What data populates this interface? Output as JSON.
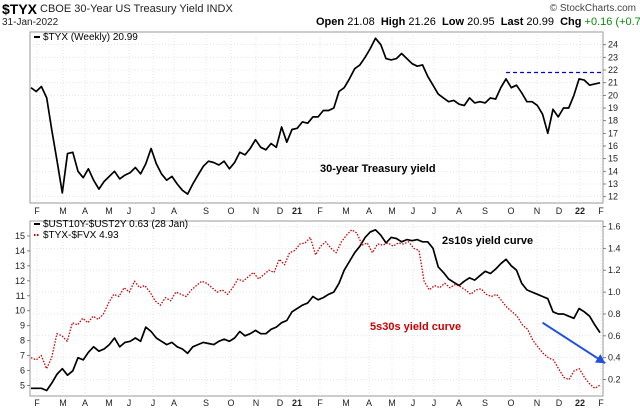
{
  "header": {
    "symbol": "$TYX",
    "description": "CBOE 30-Year US Treasury Yield INDX",
    "date": "31-Jan-2022",
    "brand": "© StockCharts.com",
    "open_label": "Open",
    "open_value": "21.08",
    "high_label": "High",
    "high_value": "21.26",
    "low_label": "Low",
    "low_value": "20.95",
    "last_label": "Last",
    "last_value": "20.99",
    "chg_label": "Chg",
    "chg_value": "+0.16 (+0.77%)",
    "chg_color": "#0a8a0a"
  },
  "chart_data": [
    {
      "type": "line",
      "panel": "top",
      "legend_entries": [
        {
          "label": "$TYX (Weekly) 20.99",
          "color": "#000000"
        }
      ],
      "annotation": "30-year Treasury yield",
      "ylim": [
        11.5,
        25
      ],
      "y_ticks": [
        12,
        13,
        14,
        15,
        16,
        17,
        18,
        19,
        20,
        21,
        22,
        23,
        24
      ],
      "x_month_labels": [
        "F",
        "M",
        "A",
        "M",
        "J",
        "J",
        "A",
        "S",
        "O",
        "N",
        "D",
        "21",
        "F",
        "M",
        "A",
        "M",
        "J",
        "J",
        "A",
        "S",
        "O",
        "N",
        "D",
        "22",
        "F"
      ],
      "reference_line": {
        "y": 21.8,
        "from_week": 91,
        "color": "#0000cc",
        "style": "dashed"
      },
      "series": [
        {
          "color": "#000000",
          "values": [
            20.6,
            20.3,
            20.7,
            19.8,
            17.2,
            14.8,
            12.3,
            15.4,
            15.5,
            14.0,
            13.5,
            14.2,
            13.3,
            12.6,
            13.2,
            13.6,
            14.0,
            13.4,
            13.7,
            13.9,
            14.3,
            13.8,
            14.6,
            15.8,
            14.6,
            13.8,
            13.3,
            13.6,
            13.0,
            12.5,
            12.2,
            13.0,
            13.7,
            14.4,
            14.8,
            14.7,
            14.5,
            14.8,
            14.2,
            14.7,
            15.5,
            15.3,
            15.8,
            16.5,
            15.9,
            15.7,
            16.2,
            15.9,
            17.5,
            16.3,
            17.3,
            17.4,
            17.9,
            17.8,
            18.3,
            18.3,
            18.8,
            18.8,
            19.0,
            20.3,
            20.6,
            21.3,
            22.1,
            22.4,
            23.0,
            23.7,
            24.5,
            24.0,
            22.9,
            22.8,
            22.9,
            23.3,
            22.9,
            22.5,
            22.3,
            22.4,
            21.5,
            20.8,
            20.1,
            19.8,
            19.5,
            19.6,
            19.3,
            19.2,
            19.8,
            19.4,
            19.5,
            19.4,
            19.8,
            19.7,
            20.6,
            21.3,
            20.6,
            20.8,
            20.2,
            19.5,
            19.5,
            19.2,
            18.5,
            17.0,
            18.9,
            18.3,
            19.0,
            19.0,
            20.0,
            21.3,
            21.2,
            20.8,
            20.9,
            20.99
          ]
        }
      ]
    },
    {
      "type": "line",
      "panel": "bottom",
      "legend_entries": [
        {
          "label": "$UST10Y-$UST2Y 0.63 (28 Jan)",
          "color": "#000000"
        },
        {
          "label": "$TYX-$FVX 4.93",
          "color": "#cc0000"
        }
      ],
      "annotations": [
        {
          "text": "2s10s yield curve",
          "color": "#000000"
        },
        {
          "text": "5s30s yield curve",
          "color": "#cc0000"
        }
      ],
      "ylim_left": [
        4.3,
        16
      ],
      "ylim_right": [
        0.05,
        1.65
      ],
      "y_ticks_left": [
        5,
        6,
        7,
        8,
        9,
        10,
        11,
        12,
        13,
        14,
        15
      ],
      "y_ticks_right": [
        0.2,
        0.4,
        0.6,
        0.8,
        1.0,
        1.2,
        1.4,
        1.6
      ],
      "x_month_labels": [
        "F",
        "M",
        "A",
        "M",
        "J",
        "J",
        "A",
        "S",
        "O",
        "N",
        "D",
        "21",
        "F",
        "M",
        "A",
        "M",
        "J",
        "J",
        "A",
        "S",
        "O",
        "N",
        "D",
        "22",
        "F"
      ],
      "arrow": {
        "from_week": 98,
        "from_value": 0.72,
        "to_week": 110,
        "to_value": 0.35,
        "color": "#1f4fe0"
      },
      "series": [
        {
          "axis": "right",
          "color": "#000000",
          "values": [
            0.12,
            0.12,
            0.12,
            0.1,
            0.17,
            0.25,
            0.3,
            0.24,
            0.28,
            0.4,
            0.38,
            0.45,
            0.5,
            0.46,
            0.48,
            0.52,
            0.58,
            0.5,
            0.54,
            0.55,
            0.58,
            0.55,
            0.68,
            0.64,
            0.58,
            0.55,
            0.52,
            0.54,
            0.5,
            0.48,
            0.44,
            0.5,
            0.52,
            0.54,
            0.53,
            0.52,
            0.55,
            0.57,
            0.55,
            0.58,
            0.64,
            0.6,
            0.62,
            0.65,
            0.62,
            0.62,
            0.66,
            0.68,
            0.72,
            0.74,
            0.82,
            0.85,
            0.88,
            0.9,
            0.96,
            0.93,
            0.95,
            0.98,
            1.0,
            1.08,
            1.2,
            1.28,
            1.36,
            1.42,
            1.5,
            1.55,
            1.57,
            1.52,
            1.45,
            1.5,
            1.49,
            1.46,
            1.48,
            1.47,
            1.48,
            1.46,
            1.46,
            1.4,
            1.23,
            1.18,
            1.12,
            1.09,
            1.06,
            1.1,
            1.13,
            1.11,
            1.15,
            1.19,
            1.17,
            1.21,
            1.26,
            1.3,
            1.24,
            1.2,
            1.08,
            1.02,
            1.0,
            0.98,
            0.96,
            0.94,
            0.82,
            0.8,
            0.8,
            0.78,
            0.76,
            0.85,
            0.82,
            0.78,
            0.7,
            0.63
          ]
        },
        {
          "axis": "right",
          "color": "#cc0000",
          "values": [
            0.4,
            0.38,
            0.42,
            0.3,
            0.4,
            0.62,
            0.6,
            0.55,
            0.72,
            0.7,
            0.76,
            0.72,
            0.78,
            0.75,
            0.8,
            0.9,
            0.98,
            0.96,
            1.04,
            1.0,
            1.1,
            1.04,
            1.06,
            1.0,
            0.92,
            0.88,
            0.95,
            0.92,
            1.0,
            0.98,
            0.96,
            1.02,
            1.06,
            1.1,
            1.08,
            1.04,
            1.0,
            1.02,
            0.98,
            1.04,
            1.12,
            1.1,
            1.14,
            1.18,
            1.12,
            1.16,
            1.2,
            1.18,
            1.3,
            1.25,
            1.36,
            1.38,
            1.44,
            1.45,
            1.5,
            1.34,
            1.42,
            1.46,
            1.4,
            1.36,
            1.46,
            1.52,
            1.57,
            1.54,
            1.43,
            1.45,
            1.36,
            1.44,
            1.43,
            1.45,
            1.42,
            1.45,
            1.44,
            1.46,
            1.4,
            1.38,
            1.1,
            1.02,
            1.06,
            1.04,
            1.08,
            1.04,
            1.07,
            1.05,
            1.02,
            0.98,
            1.02,
            1.03,
            0.98,
            0.96,
            0.98,
            0.92,
            0.86,
            0.82,
            0.78,
            0.7,
            0.66,
            0.56,
            0.5,
            0.44,
            0.4,
            0.38,
            0.3,
            0.22,
            0.2,
            0.28,
            0.3,
            0.22,
            0.16,
            0.12,
            0.15
          ]
        }
      ]
    }
  ]
}
